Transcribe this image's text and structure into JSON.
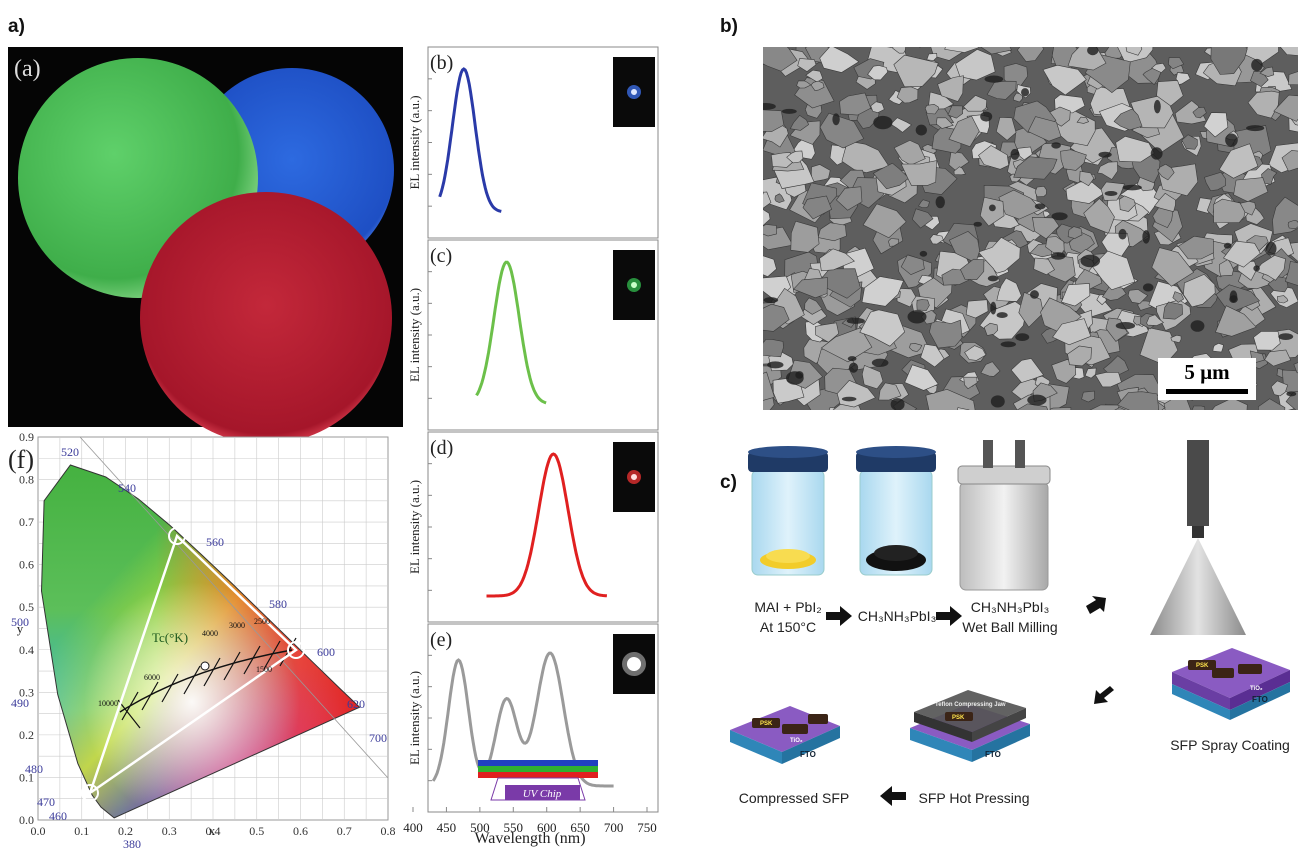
{
  "panel_a": {
    "label": "a)",
    "photo_label": "(a)",
    "spectra": [
      {
        "label": "(b)",
        "y_label": "EL intensity (a.u.)"
      },
      {
        "label": "(c)",
        "y_label": "EL intensity (a.u.)"
      },
      {
        "label": "(d)",
        "y_label": "EL intensity (a.u.)"
      },
      {
        "label": "(e)",
        "y_label": "EL intensity (a.u.)"
      }
    ],
    "spectra_x_ticks": [
      "400",
      "450",
      "500",
      "550",
      "600",
      "650",
      "700",
      "750"
    ],
    "spectra_x_label": "Wavelength (nm)",
    "uv_chip": "UV Chip",
    "cie": {
      "label": "(f)",
      "x_label": "x",
      "y_label": "y",
      "x_ticks": [
        "0.0",
        "0.1",
        "0.2",
        "0.3",
        "0.4",
        "0.5",
        "0.6",
        "0.7",
        "0.8"
      ],
      "y_ticks": [
        "0.0",
        "0.1",
        "0.2",
        "0.3",
        "0.4",
        "0.5",
        "0.6",
        "0.7",
        "0.8",
        "0.9"
      ],
      "wavelength_labels": [
        "520",
        "540",
        "560",
        "580",
        "600",
        "620",
        "700",
        "500",
        "490",
        "480",
        "470",
        "460",
        "380"
      ],
      "cct_title": "Tc(°K)",
      "cct_labels": [
        "10000",
        "6000",
        "4000",
        "3000",
        "2500",
        "1500"
      ]
    }
  },
  "panel_b": {
    "label": "b)",
    "scale_bar": "5 µm"
  },
  "panel_c": {
    "label": "c)",
    "steps": {
      "mix_line1": "MAI + PbI₂",
      "mix_line2": "At 150°C",
      "product": "CH₃NH₃PbI₃",
      "milling_line1": "CH₃NH₃PbI₃",
      "milling_line2": "Wet Ball Milling",
      "spray": "SFP Spray Coating",
      "pressing": "SFP Hot Pressing",
      "compressed": "Compressed SFP"
    },
    "substrate_labels": {
      "psk": "PSK",
      "fto": "FTO",
      "tio2": "TiO₂",
      "jaw": "Teflon Compressing Jaw"
    }
  }
}
